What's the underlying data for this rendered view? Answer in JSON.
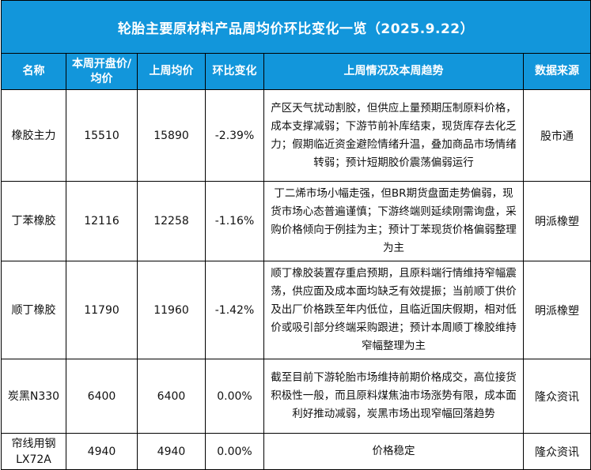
{
  "title": "轮胎主要原材料产品周均价环比变化一览（2025.9.22）",
  "headers": {
    "name": "名称",
    "this_week": "本周开盘价/均价",
    "last_week": "上周均价",
    "change": "环比变化",
    "trend": "上周情况及本周趋势",
    "source": "数据来源"
  },
  "rows": [
    {
      "name": "橡胶主力",
      "this_week": "15510",
      "last_week": "15890",
      "change": "-2.39%",
      "trend": "产区天气扰动割胶，但供应上量预期压制原料价格，成本支撑减弱；下游节前补库结束，现货库存去化乏力；假期临近资金避险情绪升温，叠加商品市场情绪转弱；预计短期胶价震荡偏弱运行",
      "source": "股市通"
    },
    {
      "name": "丁苯橡胶",
      "this_week": "12116",
      "last_week": "12258",
      "change": "-1.16%",
      "trend": "丁二烯市场小幅走强，但BR期货盘面走势偏弱，现货市场心态普遍谨慎；下游终端则延续刚需询盘，采购价格倾向于例挂为主；预计丁苯现货价格偏弱整理为主",
      "source": "明派橡塑"
    },
    {
      "name": "顺丁橡胶",
      "this_week": "11790",
      "last_week": "11960",
      "change": "-1.42%",
      "trend": "顺丁橡胶装置存重启预期，且原料端行情维持窄幅震荡，供应面及成本面均缺乏有效提振；当前顺丁供价及出厂价格跌至年内低位，且临近国庆假期，相对低价或吸引部分终端采购跟进；预计本周顺丁橡胶维持窄幅整理为主",
      "source": "明派橡塑"
    },
    {
      "name": "炭黑N330",
      "this_week": "6400",
      "last_week": "6400",
      "change": "0.00%",
      "trend": "截至目前下游轮胎市场维持前期价格成交，高位接货积极性一般，而且原料煤焦油市场涨势有限，成本面利好推动减弱，炭黑市场出现窄幅回落趋势",
      "source": "隆众资讯"
    },
    {
      "name": "帘线用钢LX72A",
      "this_week": "4940",
      "last_week": "4940",
      "change": "0.00%",
      "trend": "价格稳定",
      "source": "隆众资讯"
    }
  ]
}
